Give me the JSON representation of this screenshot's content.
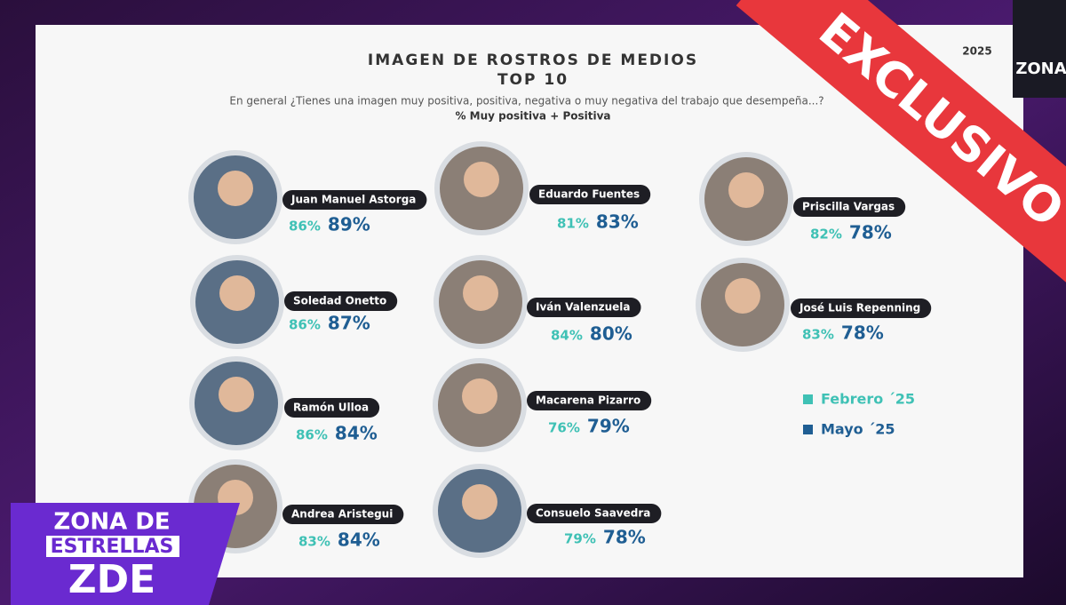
{
  "header": {
    "title": "IMAGEN DE ROSTROS DE MEDIOS",
    "subtitle": "TOP 10",
    "question": "En general ¿Tienes una imagen muy positiva, positiva, negativa o muy negativa del trabajo que desempeña...?",
    "metric": "% Muy positiva + Positiva",
    "year": "2025"
  },
  "people": [
    {
      "name": "Juan Manuel Astorga",
      "febrero": "86%",
      "mayo": "89%"
    },
    {
      "name": "Eduardo Fuentes",
      "febrero": "81%",
      "mayo": "83%"
    },
    {
      "name": "Priscilla Vargas",
      "febrero": "82%",
      "mayo": "78%"
    },
    {
      "name": "Soledad Onetto",
      "febrero": "86%",
      "mayo": "87%"
    },
    {
      "name": "Iván Valenzuela",
      "febrero": "84%",
      "mayo": "80%"
    },
    {
      "name": "José Luis Repenning",
      "febrero": "83%",
      "mayo": "78%"
    },
    {
      "name": "Ramón Ulloa",
      "febrero": "86%",
      "mayo": "84%"
    },
    {
      "name": "Macarena Pizarro",
      "febrero": "76%",
      "mayo": "79%"
    },
    {
      "name": "Andrea Aristegui",
      "febrero": "83%",
      "mayo": "84%"
    },
    {
      "name": "Consuelo Saavedra",
      "febrero": "79%",
      "mayo": "78%"
    }
  ],
  "legend": {
    "febrero": "Febrero ´25",
    "mayo": "Mayo ´25"
  },
  "badge": "EXCLUSIVO",
  "logo": {
    "line1": "ZONA DE",
    "line2": "ESTRELLAS",
    "line3": "ZDE"
  },
  "corner_logo": "ZONA"
}
